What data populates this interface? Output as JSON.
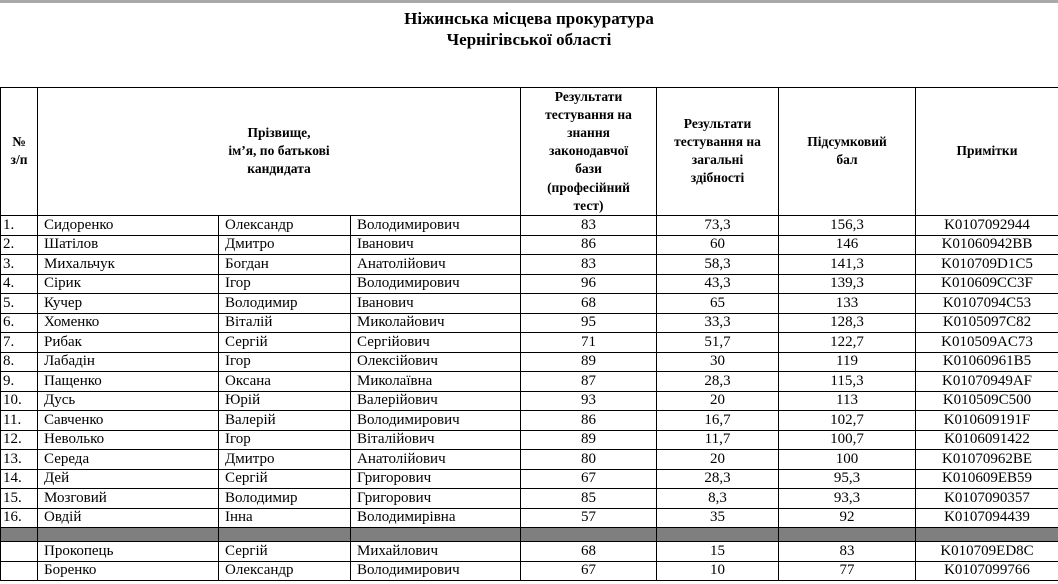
{
  "colors": {
    "separator_row": "#7f7f7f",
    "top_edge": "#a9a9a9"
  },
  "page": {
    "title_line1": "Ніжинська місцева прокуратура",
    "title_line2": "Чернігівської області"
  },
  "table": {
    "headers": {
      "num": "№\nз/п",
      "name": "Прізвище,\nім’я, по батькові\nкандидата",
      "law_test": "Результати\nтестування на\nзнання\nзаконодавчої\nбази\n(професійний\nтест)",
      "ability_test": "Результати\nтестування на\nзагальні\nздібності",
      "total": "Підсумковий\nбал",
      "notes": "Примітки"
    },
    "rows": [
      {
        "cells": [
          "1.",
          "Сидоренко",
          "Олександр",
          "Володимирович",
          "83",
          "73,3",
          "156,3",
          "K0107092944"
        ]
      },
      {
        "cells": [
          "2.",
          "Шатілов",
          "Дмитро",
          "Іванович",
          "86",
          "60",
          "146",
          "K01060942BB"
        ]
      },
      {
        "cells": [
          "3.",
          "Михальчук",
          "Богдан",
          "Анатолійович",
          "83",
          "58,3",
          "141,3",
          "K010709D1C5"
        ]
      },
      {
        "cells": [
          "4.",
          "Сірик",
          "Ігор",
          "Володимирович",
          "96",
          "43,3",
          "139,3",
          "K010609CC3F"
        ]
      },
      {
        "cells": [
          "5.",
          "Кучер",
          "Володимир",
          "Іванович",
          "68",
          "65",
          "133",
          "K0107094C53"
        ]
      },
      {
        "cells": [
          "6.",
          "Хоменко",
          "Віталій",
          "Миколайович",
          "95",
          "33,3",
          "128,3",
          "K0105097C82"
        ]
      },
      {
        "cells": [
          "7.",
          "Рибак",
          "Сергій",
          "Сергійович",
          "71",
          "51,7",
          "122,7",
          "K010509AC73"
        ]
      },
      {
        "cells": [
          "8.",
          "Лабадін",
          "Ігор",
          "Олексійович",
          "89",
          "30",
          "119",
          "K01060961B5"
        ]
      },
      {
        "cells": [
          "9.",
          "Пащенко",
          "Оксана",
          "Миколаївна",
          "87",
          "28,3",
          "115,3",
          "K01070949AF"
        ]
      },
      {
        "cells": [
          "10.",
          "Дусь",
          "Юрій",
          "Валерійович",
          "93",
          "20",
          "113",
          "K010509C500"
        ]
      },
      {
        "cells": [
          "11.",
          "Савченко",
          "Валерій",
          "Володимирович",
          "86",
          "16,7",
          "102,7",
          "K010609191F"
        ]
      },
      {
        "cells": [
          "12.",
          "Неволько",
          "Ігор",
          "Віталійович",
          "89",
          "11,7",
          "100,7",
          "K0106091422"
        ]
      },
      {
        "cells": [
          "13.",
          "Середа",
          "Дмитро",
          "Анатолійович",
          "80",
          "20",
          "100",
          "K01070962BE"
        ]
      },
      {
        "cells": [
          "14.",
          "Дей",
          "Сергій",
          "Григорович",
          "67",
          "28,3",
          "95,3",
          "K010609EB59"
        ]
      },
      {
        "cells": [
          "15.",
          "Мозговий",
          "Володимир",
          "Григорович",
          "85",
          "8,3",
          "93,3",
          "K0107090357"
        ]
      },
      {
        "cells": [
          "16.",
          "Овдій",
          "Інна",
          "Володимирівна",
          "57",
          "35",
          "92",
          "K0107094439"
        ]
      },
      {
        "separator": true
      },
      {
        "cells": [
          "",
          "Прокопець",
          "Сергій",
          "Михайлович",
          "68",
          "15",
          "83",
          "K010709ED8C"
        ]
      },
      {
        "cells": [
          "",
          "Боренко",
          "Олександр",
          "Володимирович",
          "67",
          "10",
          "77",
          "K0107099766"
        ]
      }
    ]
  }
}
